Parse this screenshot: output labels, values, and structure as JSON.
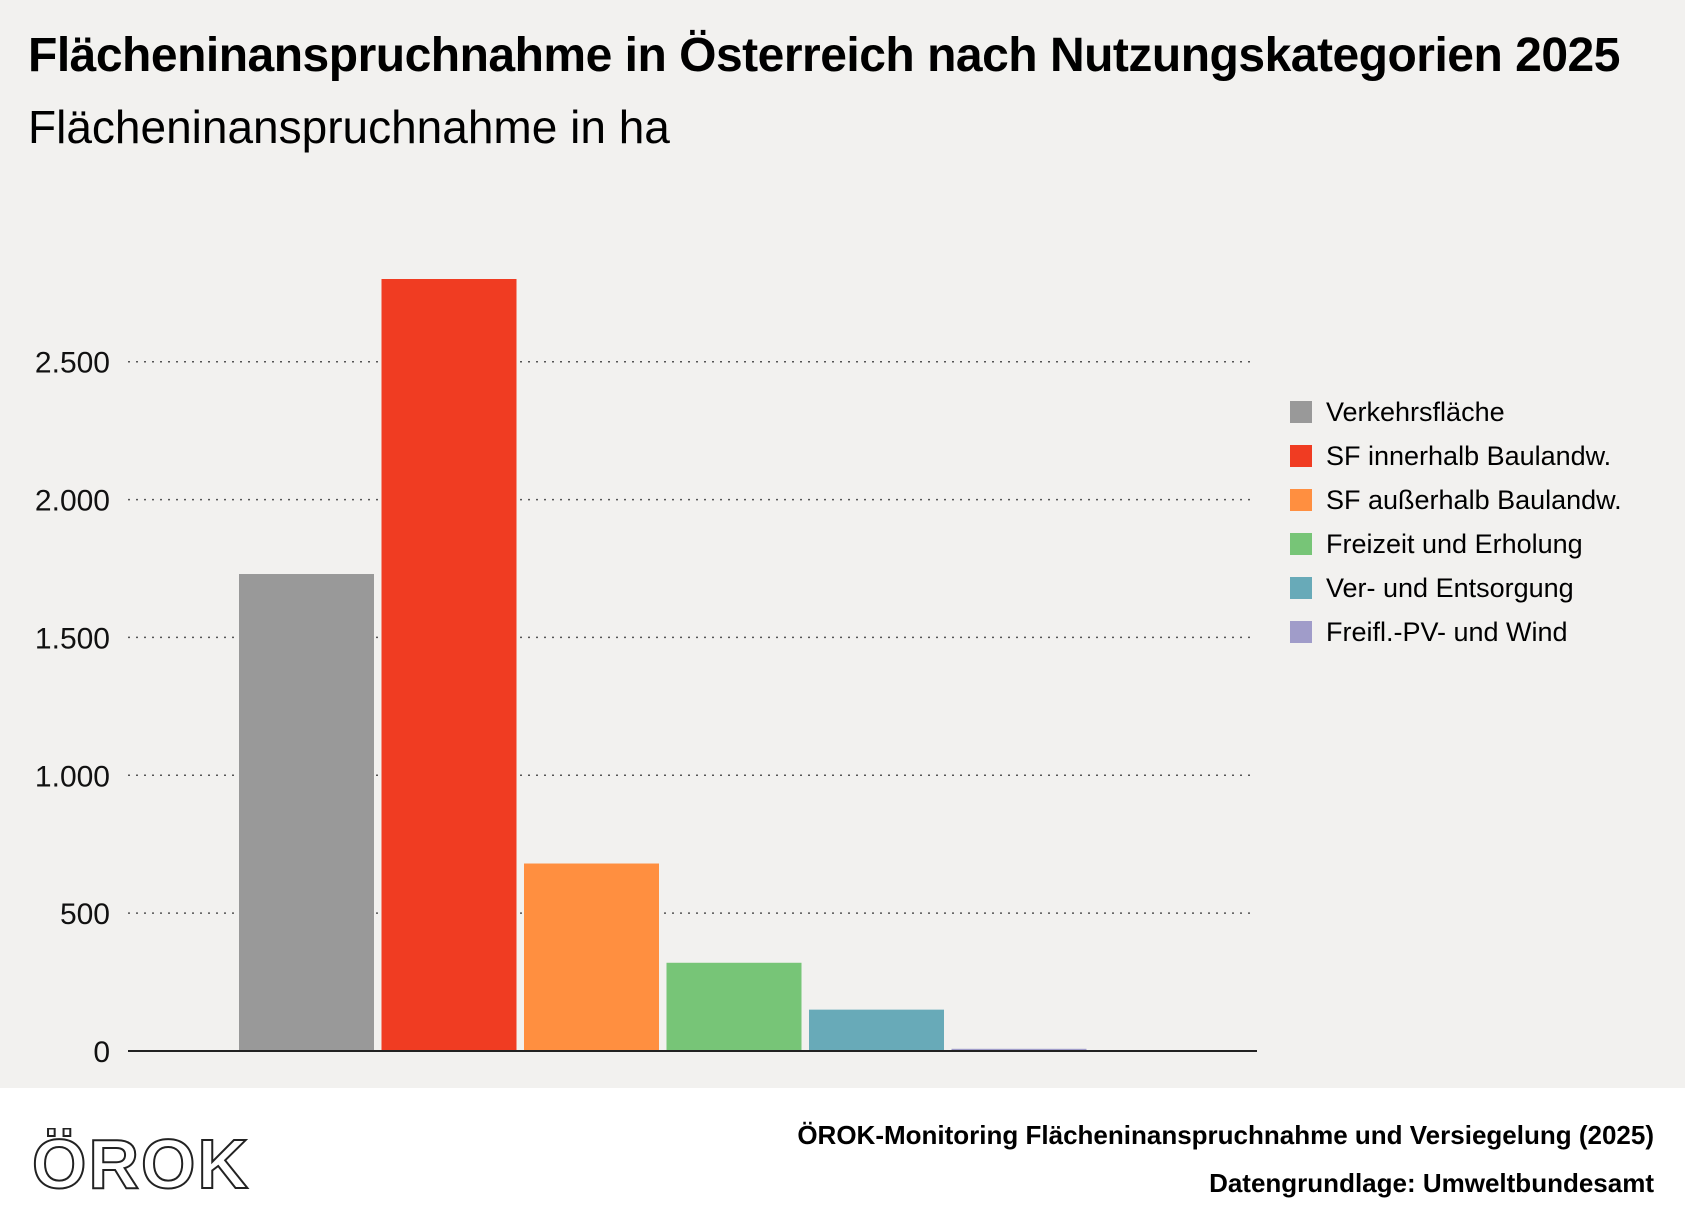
{
  "chart_data": {
    "type": "bar",
    "title": "Flächeninanspruchnahme in Österreich nach Nutzungskategorien 2025",
    "subtitle": "Flächeninanspruchnahme in ha",
    "xlabel": "",
    "ylabel": "",
    "ylim": [
      0,
      2800
    ],
    "yticks": [
      0,
      500,
      1000,
      1500,
      2000,
      2500
    ],
    "ytick_labels": [
      "0",
      "500",
      "1.000",
      "1.500",
      "2.000",
      "2.500"
    ],
    "grid": true,
    "legend_position": "right",
    "series": [
      {
        "name": "Verkehrsfläche",
        "value": 1730,
        "color": "#999999"
      },
      {
        "name": "SF innerhalb Baulandw.",
        "value": 2800,
        "color": "#f03c22"
      },
      {
        "name": "SF außerhalb Baulandw.",
        "value": 680,
        "color": "#ff8f40"
      },
      {
        "name": "Freizeit und Erholung",
        "value": 320,
        "color": "#77c577"
      },
      {
        "name": "Ver- und Entsorgung",
        "value": 150,
        "color": "#68aab8"
      },
      {
        "name": "Freifl.-PV- und Wind",
        "value": 8,
        "color": "#a09cc9"
      }
    ]
  },
  "footer": {
    "logo_text": "ÖROK",
    "source": "ÖROK-Monitoring Flächeninanspruchnahme und Versiegelung (2025)",
    "data_basis": "Datengrundlage: Umweltbundesamt"
  }
}
